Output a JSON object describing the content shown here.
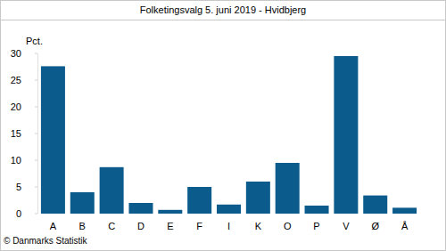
{
  "chart_data": {
    "type": "bar",
    "title": "Folketingsvalg 5. juni 2019 - Hvidbjerg",
    "y_label": "Pct.",
    "footer": "© Danmarks Statistik",
    "categories": [
      "A",
      "B",
      "C",
      "D",
      "E",
      "F",
      "I",
      "K",
      "O",
      "P",
      "V",
      "Ø",
      "Å"
    ],
    "values": [
      27.6,
      4.0,
      8.7,
      2.0,
      0.7,
      5.0,
      1.7,
      6.0,
      9.5,
      1.5,
      29.5,
      3.4,
      1.1
    ],
    "color": "#0b5c8c",
    "ylim": [
      0,
      30
    ],
    "yticks": [
      0,
      5,
      10,
      15,
      20,
      25,
      30
    ],
    "grid": false
  }
}
